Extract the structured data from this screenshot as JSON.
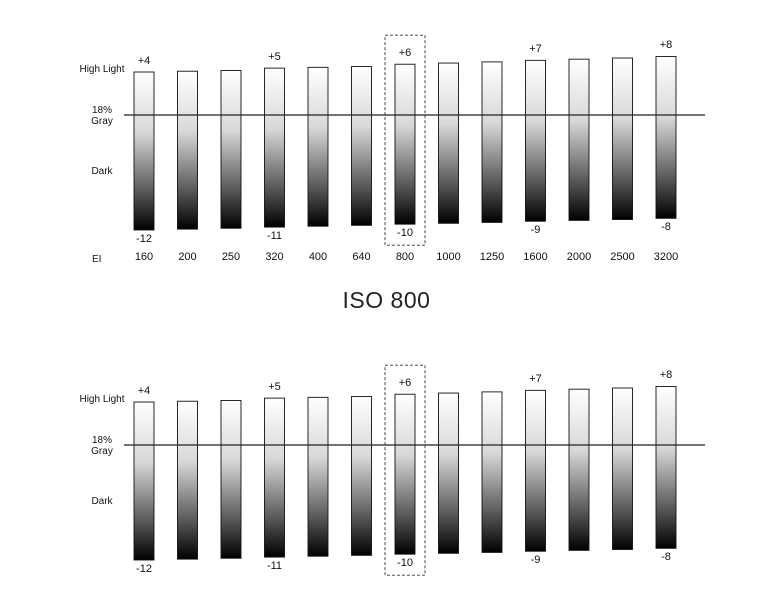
{
  "title": "ISO 800",
  "labels": {
    "high_light": "High Light",
    "gray": "18%\nGray",
    "dark": "Dark",
    "ei": "EI"
  },
  "chart_data": {
    "type": "bar",
    "categories": [
      "160",
      "200",
      "250",
      "320",
      "400",
      "640",
      "800",
      "1000",
      "1250",
      "1600",
      "2000",
      "2500",
      "3200"
    ],
    "highlighted": "800",
    "series": [
      {
        "name": "High Light",
        "values": [
          4,
          4.2,
          4.4,
          5,
          5.2,
          5.4,
          6,
          6.3,
          6.6,
          7,
          7.3,
          7.6,
          8
        ]
      },
      {
        "name": "Dark",
        "values": [
          -12,
          -11.7,
          -11.4,
          -11,
          -10.7,
          -10.4,
          -10,
          -9.7,
          -9.4,
          -9,
          -8.7,
          -8.4,
          -8
        ]
      }
    ],
    "top_labels": [
      {
        "category": "160",
        "text": "+4"
      },
      {
        "category": "320",
        "text": "+5"
      },
      {
        "category": "800",
        "text": "+6"
      },
      {
        "category": "1600",
        "text": "+7"
      },
      {
        "category": "3200",
        "text": "+8"
      }
    ],
    "bottom_labels": [
      {
        "category": "160",
        "text": "-12"
      },
      {
        "category": "320",
        "text": "-11"
      },
      {
        "category": "800",
        "text": "-10"
      },
      {
        "category": "1600",
        "text": "-9"
      },
      {
        "category": "3200",
        "text": "-8"
      }
    ]
  }
}
